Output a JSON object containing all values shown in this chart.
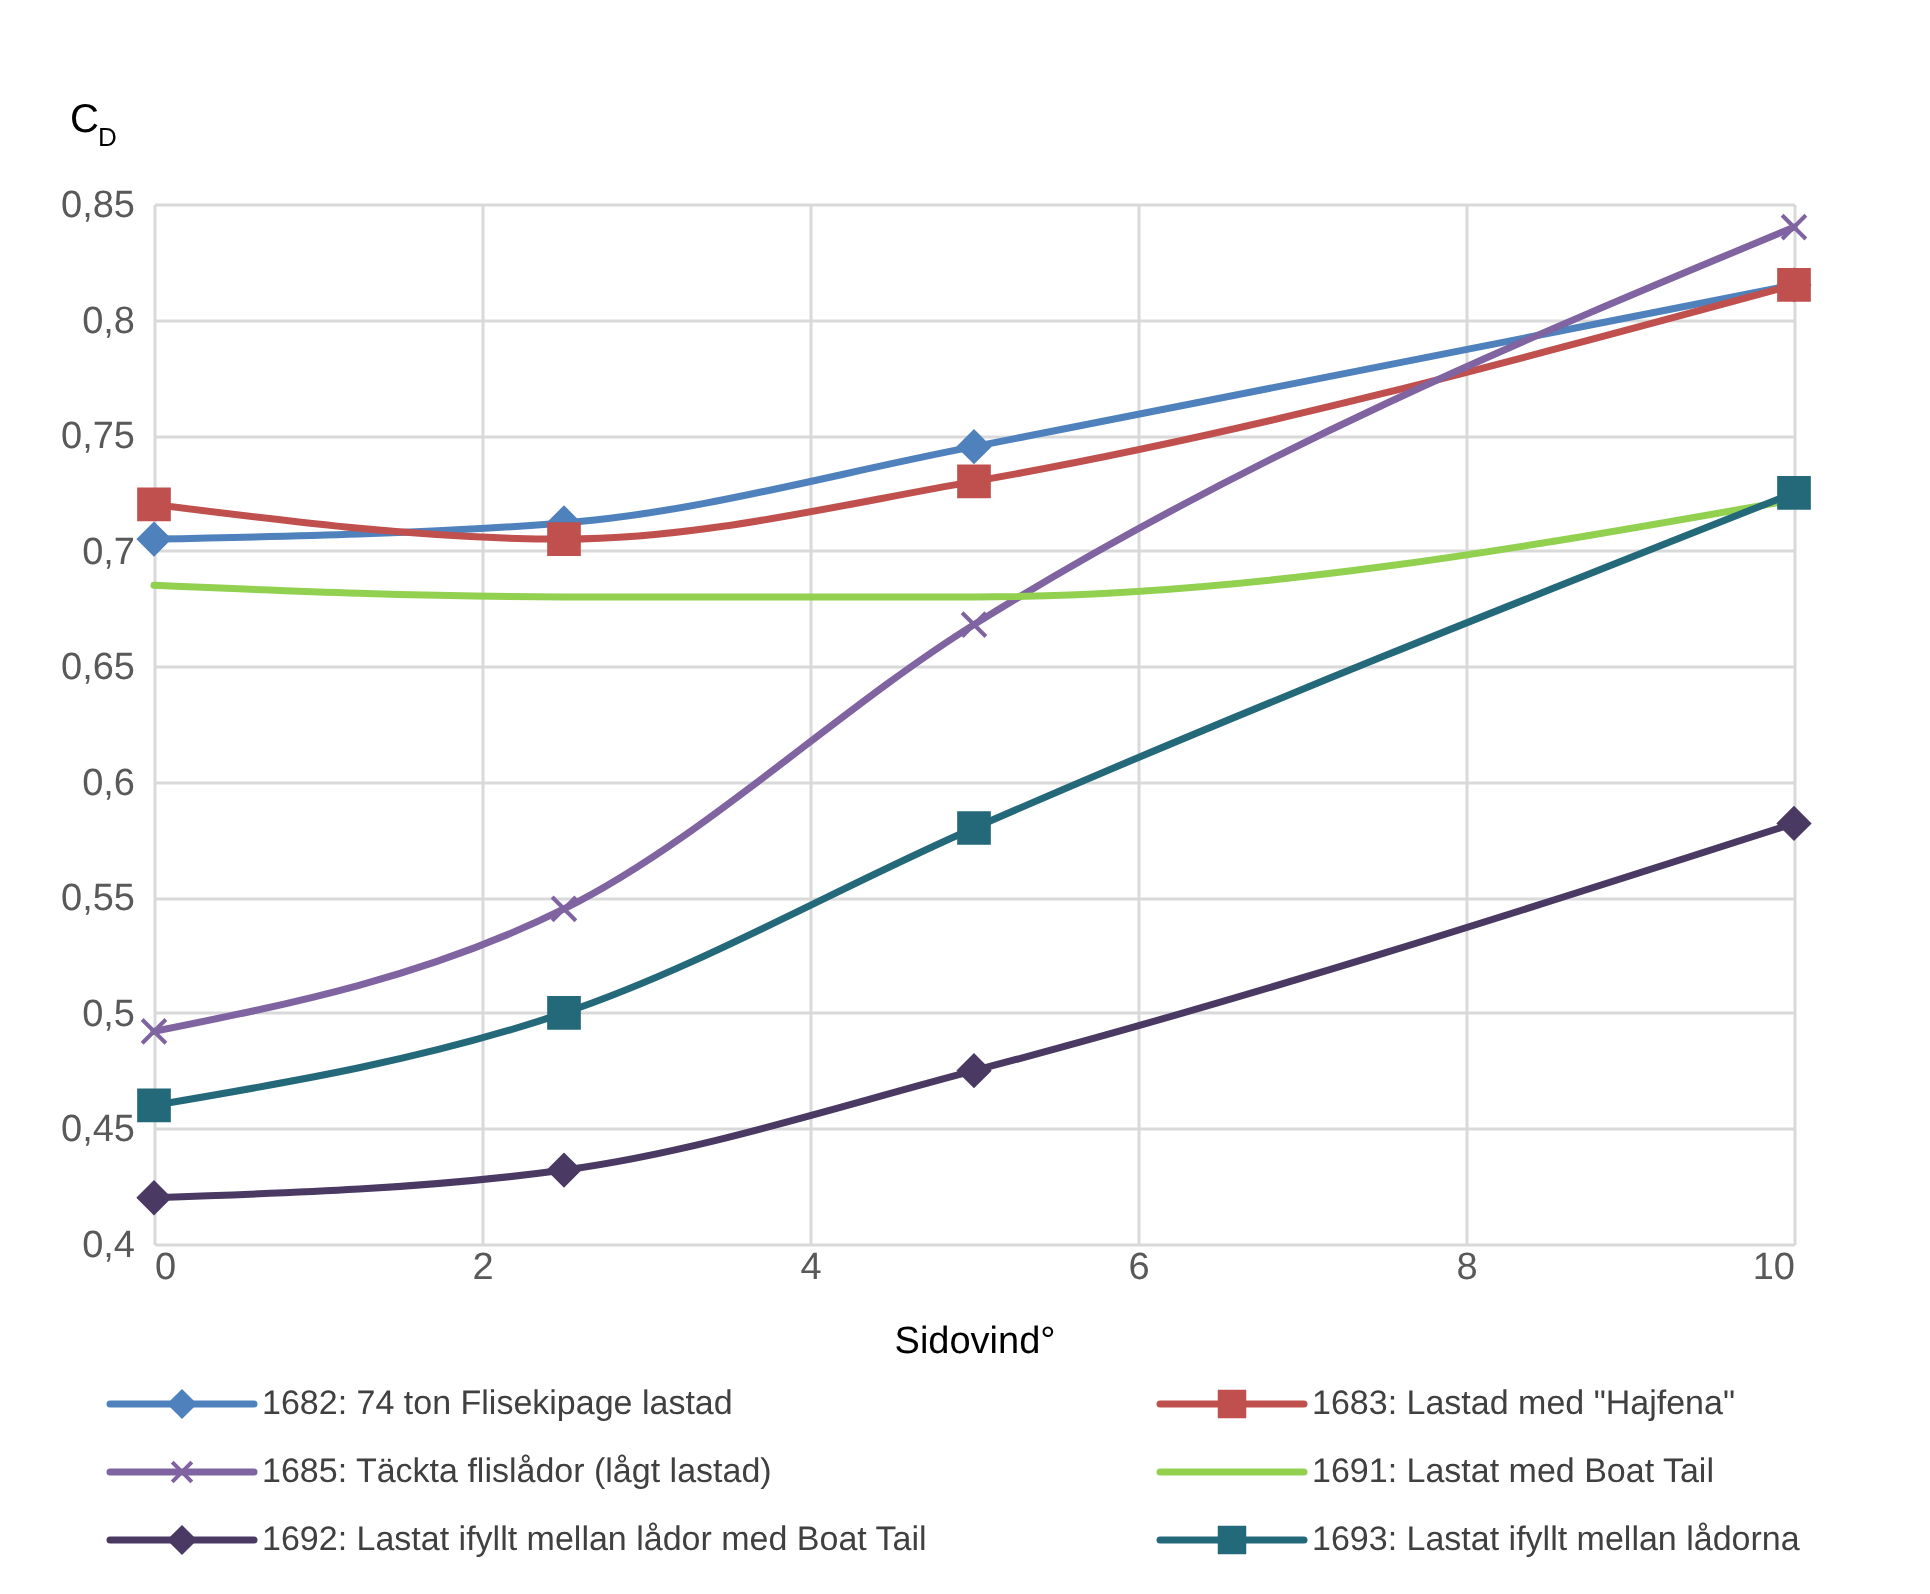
{
  "chart_data": {
    "type": "line",
    "xlabel": "Sidovind°",
    "ylabel": "C$_{D}$",
    "x": [
      0,
      2.5,
      5,
      10
    ],
    "series": [
      {
        "name": "1682: 74 ton Flisekipage lastad",
        "color": "#4f81bd",
        "marker": "diamond",
        "values": [
          0.705,
          0.712,
          0.745,
          0.815
        ]
      },
      {
        "name": "1683: Lastad med \"Hajfena\"",
        "color": "#c0504d",
        "marker": "square",
        "values": [
          0.72,
          0.705,
          0.73,
          0.815
        ]
      },
      {
        "name": "1685: Täckta flislådor (lågt lastad)",
        "color": "#8064a2",
        "marker": "cross",
        "values": [
          0.492,
          0.545,
          0.668,
          0.84
        ]
      },
      {
        "name": "1691: Lastat med Boat Tail",
        "color": "#92d050",
        "marker": "none",
        "values": [
          0.685,
          0.68,
          0.68,
          0.722
        ]
      },
      {
        "name": "1692: Lastat ifyllt mellan lådor med Boat Tail",
        "color": "#4a3a63",
        "marker": "diamond",
        "values": [
          0.42,
          0.432,
          0.475,
          0.582
        ]
      },
      {
        "name": "1693: Lastat ifyllt mellan lådorna",
        "color": "#24697a",
        "marker": "square",
        "values": [
          0.46,
          0.5,
          0.58,
          0.725
        ]
      }
    ],
    "xlim": [
      0,
      10
    ],
    "xticks": [
      0,
      2,
      4,
      6,
      8,
      10
    ],
    "ylim": [
      0.4,
      0.85
    ],
    "yticks": [
      {
        "value": 0.4,
        "label": "0,4"
      },
      {
        "value": 0.45,
        "label": "0,45"
      },
      {
        "value": 0.5,
        "label": "0,5"
      },
      {
        "value": 0.55,
        "label": "0,55"
      },
      {
        "value": 0.6,
        "label": "0,6"
      },
      {
        "value": 0.65,
        "label": "0,65"
      },
      {
        "value": 0.7,
        "label": "0,7"
      },
      {
        "value": 0.75,
        "label": "0,75"
      },
      {
        "value": 0.8,
        "label": "0,8"
      },
      {
        "value": 0.85,
        "label": "0,85"
      }
    ],
    "grid": true,
    "legend": "bottom",
    "line_style": "solid"
  }
}
